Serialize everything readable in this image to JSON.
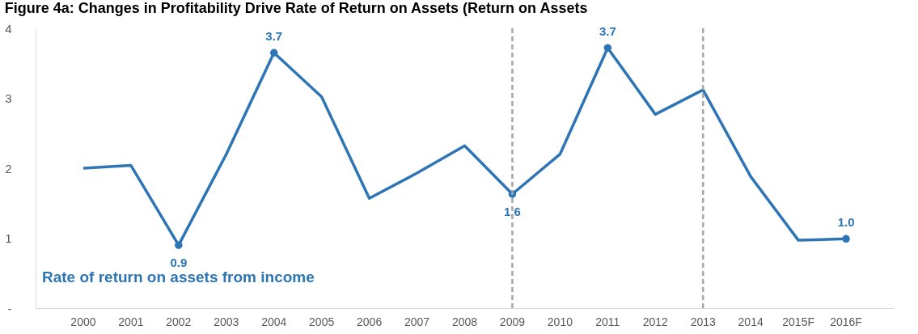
{
  "chart_data": {
    "type": "line",
    "title": "Figure 4a: Changes in Profitability Drive Rate of Return on Assets (Return on Assets",
    "categories": [
      "2000",
      "2001",
      "2002",
      "2003",
      "2004",
      "2005",
      "2006",
      "2007",
      "2008",
      "2009",
      "2010",
      "2011",
      "2012",
      "2013",
      "2014",
      "2015F",
      "2016F"
    ],
    "series": [
      {
        "name": "Rate of return on assets from income",
        "color": "#2e75b6",
        "values": [
          2.0,
          2.04,
          0.9,
          2.2,
          3.65,
          3.02,
          1.57,
          1.93,
          2.32,
          1.63,
          2.2,
          3.72,
          2.77,
          3.12,
          1.88,
          0.97,
          0.99
        ],
        "value_labels": [
          null,
          null,
          "0.9",
          null,
          "3.7",
          null,
          null,
          null,
          null,
          "1.6",
          null,
          "3.7",
          null,
          null,
          null,
          null,
          "1.0"
        ]
      }
    ],
    "ylim": [
      0,
      4
    ],
    "yticks": [
      {
        "value": 0,
        "label": "-"
      },
      1,
      2,
      3,
      4
    ],
    "ref_lines": [
      {
        "axis": "x",
        "value": "2009",
        "color": "#a6a6a6",
        "line_style": "dashed"
      },
      {
        "axis": "x",
        "value": "2013",
        "color": "#a6a6a6",
        "line_style": "dashed"
      }
    ],
    "grid": false,
    "marker": "none",
    "line_style": "solid"
  }
}
